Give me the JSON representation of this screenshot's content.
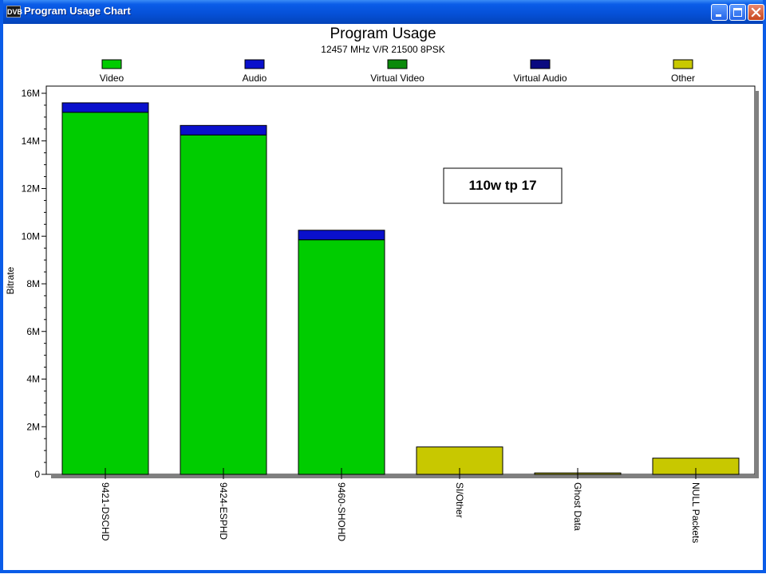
{
  "window": {
    "title": "Program Usage Chart",
    "app_icon_text": "DVB"
  },
  "chart_data": {
    "type": "bar",
    "stacked": true,
    "title": "Program Usage",
    "subtitle": "12457 MHz V/R 21500 8PSK",
    "ylabel": "Bitrate",
    "xlabel": "",
    "ylim": [
      0,
      16000000
    ],
    "yticks": [
      0,
      2000000,
      4000000,
      6000000,
      8000000,
      10000000,
      12000000,
      14000000,
      16000000
    ],
    "ytick_labels": [
      "0",
      "2M",
      "4M",
      "6M",
      "8M",
      "10M",
      "12M",
      "14M",
      "16M"
    ],
    "categories": [
      "9421-DSCHD",
      "9424-ESPHD",
      "9460-SHOHD",
      "SI/Other",
      "Ghost Data",
      "NULL Packets"
    ],
    "series": [
      {
        "name": "Video",
        "color": "#00cc00",
        "values": [
          15200000,
          14250000,
          9850000,
          0,
          0,
          0
        ]
      },
      {
        "name": "Audio",
        "color": "#0a10cc",
        "values": [
          400000,
          400000,
          400000,
          0,
          0,
          0
        ]
      },
      {
        "name": "Virtual Video",
        "color": "#0a8a0a",
        "values": [
          0,
          0,
          0,
          0,
          0,
          0
        ]
      },
      {
        "name": "Virtual Audio",
        "color": "#0a0a80",
        "values": [
          0,
          0,
          0,
          0,
          0,
          0
        ]
      },
      {
        "name": "Other",
        "color": "#c8c800",
        "values": [
          0,
          0,
          0,
          1150000,
          60000,
          680000
        ]
      }
    ],
    "legend_position": "top",
    "annotation": "110w tp 17",
    "grid": false
  }
}
